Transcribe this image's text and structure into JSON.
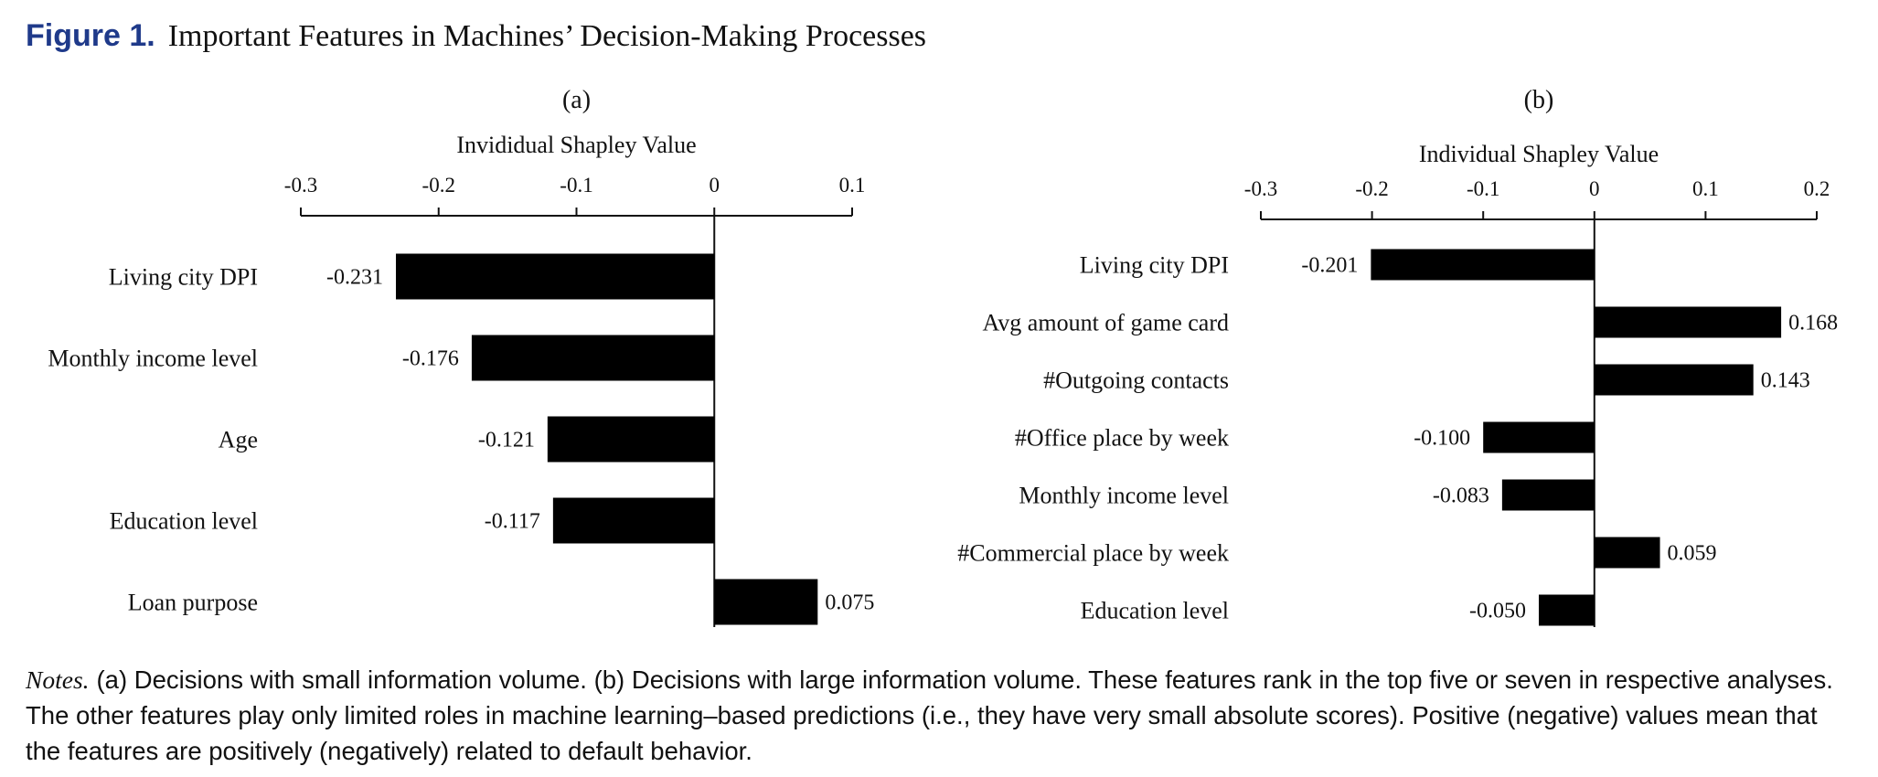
{
  "figure": {
    "label": "Figure 1.",
    "title": "Important Features in Machines’ Decision-Making Processes"
  },
  "chart_data": [
    {
      "type": "bar",
      "orientation": "horizontal",
      "panel": "(a)",
      "xlabel": "Invididual Shapley Value",
      "xlim": [
        -0.3,
        0.1
      ],
      "ticks": [
        -0.3,
        -0.2,
        -0.1,
        0,
        0.1
      ],
      "tick_labels": [
        "-0.3",
        "-0.2",
        "-0.1",
        "0",
        "0.1"
      ],
      "axis_position": "top",
      "grid": false,
      "bar_color": "#000000",
      "categories": [
        "Living city DPI",
        "Monthly income level",
        "Age",
        "Education level",
        "Loan purpose"
      ],
      "values": [
        -0.231,
        -0.176,
        -0.121,
        -0.117,
        0.075
      ],
      "value_labels": [
        "-0.231",
        "-0.176",
        "-0.121",
        "-0.117",
        "0.075"
      ]
    },
    {
      "type": "bar",
      "orientation": "horizontal",
      "panel": "(b)",
      "xlabel": "Individual  Shapley Value",
      "xlim": [
        -0.3,
        0.2
      ],
      "ticks": [
        -0.3,
        -0.2,
        -0.1,
        0,
        0.1,
        0.2
      ],
      "tick_labels": [
        "-0.3",
        "-0.2",
        "-0.1",
        "0",
        "0.1",
        "0.2"
      ],
      "axis_position": "top",
      "grid": false,
      "bar_color": "#000000",
      "categories": [
        "Living city DPI",
        "Avg amount of game card",
        "#Outgoing contacts",
        "#Office place by week",
        "Monthly income level",
        "#Commercial place by week",
        "Education level"
      ],
      "values": [
        -0.201,
        0.168,
        0.143,
        -0.1,
        -0.083,
        0.059,
        -0.05
      ],
      "value_labels": [
        "-0.201",
        "0.168",
        "0.143",
        "-0.100",
        "-0.083",
        "0.059",
        "-0.050"
      ]
    }
  ],
  "notes": {
    "label": "Notes.",
    "text": "(a) Decisions with small information volume. (b) Decisions with large information volume. These features rank in the top five or seven in respective analyses. The other features play only limited roles in machine learning–based predictions (i.e., they have very small absolute scores). Positive (negative) values mean that the features are positively (negatively) related to default behavior."
  }
}
